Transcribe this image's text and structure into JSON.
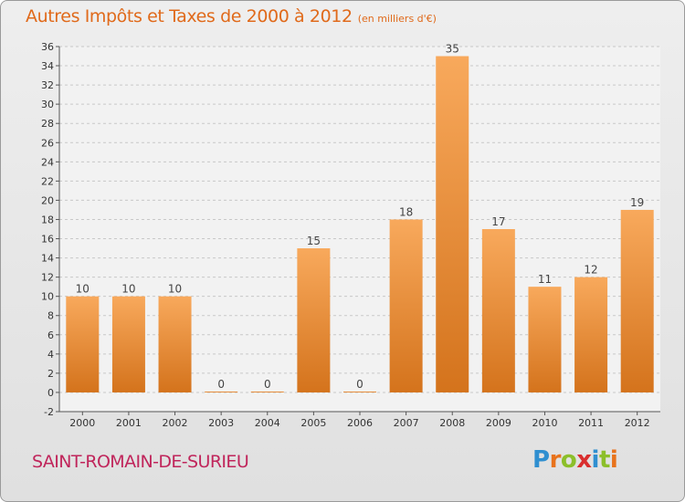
{
  "header": {
    "title": "Autres Impôts et Taxes de 2000 à 2012",
    "subtitle": "(en milliers d'€)"
  },
  "footer": {
    "commune": "SAINT-ROMAIN-DE-SURIEU",
    "logo_letters": [
      {
        "char": "P",
        "color": "#2f8fd0"
      },
      {
        "char": "r",
        "color": "#e8731c"
      },
      {
        "char": "o",
        "color": "#8cbf2a"
      },
      {
        "char": "x",
        "color": "#d92e2e"
      },
      {
        "char": "i",
        "color": "#2f8fd0"
      },
      {
        "char": "t",
        "color": "#8cbf2a"
      },
      {
        "char": "i",
        "color": "#e8731c"
      }
    ]
  },
  "colors": {
    "bar_top": "#f8a95c",
    "bar_bottom": "#d4731c",
    "grid": "#c8c8c8",
    "axis_text": "#333333"
  },
  "chart_data": {
    "type": "bar",
    "categories": [
      "2000",
      "2001",
      "2002",
      "2003",
      "2004",
      "2005",
      "2006",
      "2007",
      "2008",
      "2009",
      "2010",
      "2011",
      "2012"
    ],
    "values": [
      10,
      10,
      10,
      0,
      0,
      15,
      0,
      18,
      35,
      17,
      11,
      12,
      19
    ],
    "data_labels": [
      "10",
      "10",
      "10",
      "0",
      "0",
      "15",
      "0",
      "18",
      "35",
      "17",
      "11",
      "12",
      "19"
    ],
    "yticks": [
      -2,
      0,
      2,
      4,
      6,
      8,
      10,
      12,
      14,
      16,
      18,
      20,
      22,
      24,
      26,
      28,
      30,
      32,
      34,
      36
    ],
    "ylim": [
      -2,
      36
    ],
    "grid": true,
    "xlabel": "",
    "ylabel": ""
  }
}
